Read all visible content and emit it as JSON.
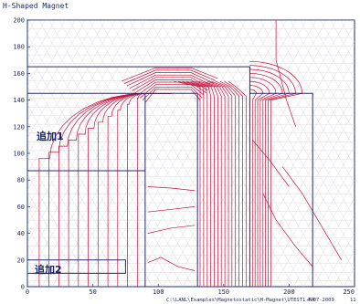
{
  "window": {
    "title": "H-Shaped Magnet"
  },
  "annotations": {
    "region_1": "追加1",
    "region_2": "追加2"
  },
  "footer": {
    "path": "C:\\LANL\\Examples\\Magnetostatic\\H-Magnet\\UTEST1.AM",
    "date": "4-07-2009",
    "page": "11"
  },
  "axes": {
    "x": {
      "min": 0,
      "max": 250,
      "ticks": [
        0,
        50,
        100,
        150,
        200,
        250
      ]
    },
    "y": {
      "min": 0,
      "max": 200,
      "ticks": [
        0,
        20,
        40,
        60,
        80,
        100,
        120,
        140,
        160,
        180,
        200
      ]
    }
  },
  "colors": {
    "axis": "#1e2a6e",
    "mesh": "#c9c9d6",
    "field": "#c8103a",
    "boundary": "#2a2a70"
  }
}
